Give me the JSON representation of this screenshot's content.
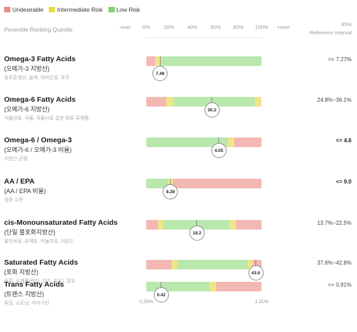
{
  "colors": {
    "undesirable": "#f4b8b4",
    "intermediate": "#efe58a",
    "low": "#b9e8ad"
  },
  "legend": [
    {
      "label": "Undesirable",
      "color": "#ee8a84"
    },
    {
      "label": "Intermediate Risk",
      "color": "#e8dc3f"
    },
    {
      "label": "Low Risk",
      "color": "#7ed36a"
    }
  ],
  "header": {
    "percentile_label": "Pecentile Ranking Quintile",
    "ticks": [
      "-over",
      "0%",
      "20%",
      "40%",
      "60%",
      "80%",
      "100%",
      "+over"
    ],
    "ref_line1": "95%",
    "ref_line2": "Reference Interval"
  },
  "rows": [
    {
      "title": "Omega-3 Fatty Acids",
      "subtitle": "(오메가-3 지방산)",
      "note": "등푸른생선, 들깨, 아마인유, 호두",
      "segments": [
        {
          "kind": "undesirable",
          "pct": 8
        },
        {
          "kind": "intermediate",
          "pct": 5
        },
        {
          "kind": "low",
          "pct": 87
        }
      ],
      "marker_label": "7.48",
      "marker_pos": 12,
      "reference": ">= 7.27%",
      "ref_bold": false
    },
    {
      "title": "Omega-6 Fatty Acids",
      "subtitle": "(오메가-6 지방산)",
      "note": "식물성유, 곡물, 곡물사료 섭취 육류·유제품",
      "segments": [
        {
          "kind": "undesirable",
          "pct": 17
        },
        {
          "kind": "intermediate",
          "pct": 6
        },
        {
          "kind": "low",
          "pct": 71
        },
        {
          "kind": "intermediate",
          "pct": 6
        }
      ],
      "marker_label": "30.2",
      "marker_pos": 57,
      "reference": "24.8%~36.1%",
      "ref_bold": false
    },
    {
      "title": "Omega-6 / Omega-3",
      "subtitle": "(오메가-6 / 오메가-3 비율)",
      "note": "지방산 균형",
      "segments": [
        {
          "kind": "low",
          "pct": 71
        },
        {
          "kind": "intermediate",
          "pct": 5
        },
        {
          "kind": "undesirable",
          "pct": 24
        }
      ],
      "marker_label": "4.05",
      "marker_pos": 63,
      "reference": "<= 4.6",
      "ref_bold": true
    },
    {
      "title": "AA / EPA",
      "subtitle": "(AA / EPA 비율)",
      "note": "염증 수준",
      "segments": [
        {
          "kind": "low",
          "pct": 19
        },
        {
          "kind": "intermediate",
          "pct": 4
        },
        {
          "kind": "undesirable",
          "pct": 77
        }
      ],
      "marker_label": "8.28",
      "marker_pos": 21,
      "reference": "<= 9.0",
      "ref_bold": true
    },
    {
      "title": "cis-Monounsaturated Fatty Acids",
      "subtitle": "(단일 불포화지방산)",
      "note": "올리브유, 유제유, 카놀라유, 아몬드",
      "segments": [
        {
          "kind": "undesirable",
          "pct": 10
        },
        {
          "kind": "intermediate",
          "pct": 5
        },
        {
          "kind": "low",
          "pct": 57
        },
        {
          "kind": "intermediate",
          "pct": 6
        },
        {
          "kind": "undesirable",
          "pct": 22
        }
      ],
      "marker_label": "18.2",
      "marker_pos": 44,
      "reference": "13.7%~22.5%",
      "ref_bold": false
    },
    {
      "title": "Saturated Fatty Acids",
      "subtitle": "(포화 지방산)",
      "note": "육류, 유제품(버터, 치즈, 우유), 팜유",
      "segments": [
        {
          "kind": "undesirable",
          "pct": 22
        },
        {
          "kind": "intermediate",
          "pct": 5
        },
        {
          "kind": "low",
          "pct": 61
        },
        {
          "kind": "intermediate",
          "pct": 4
        },
        {
          "kind": "undesirable",
          "pct": 8
        }
      ],
      "marker_label": "43.6",
      "marker_pos": 95,
      "reference": "37.6%~42.8%",
      "ref_bold": false
    },
    {
      "title": "Trans Fatty Acids",
      "subtitle": "(트랜스 지방산)",
      "note": "튀김, 쇼트닝, 마아가린",
      "segments": [
        {
          "kind": "low",
          "pct": 55
        },
        {
          "kind": "intermediate",
          "pct": 6
        },
        {
          "kind": "undesirable",
          "pct": 39
        }
      ],
      "marker_label": "0.42",
      "marker_pos": 13,
      "reference": "<= 0.91%",
      "ref_bold": false
    }
  ],
  "footer": {
    "left_label": "0.28%",
    "right_label": "1.31%"
  }
}
